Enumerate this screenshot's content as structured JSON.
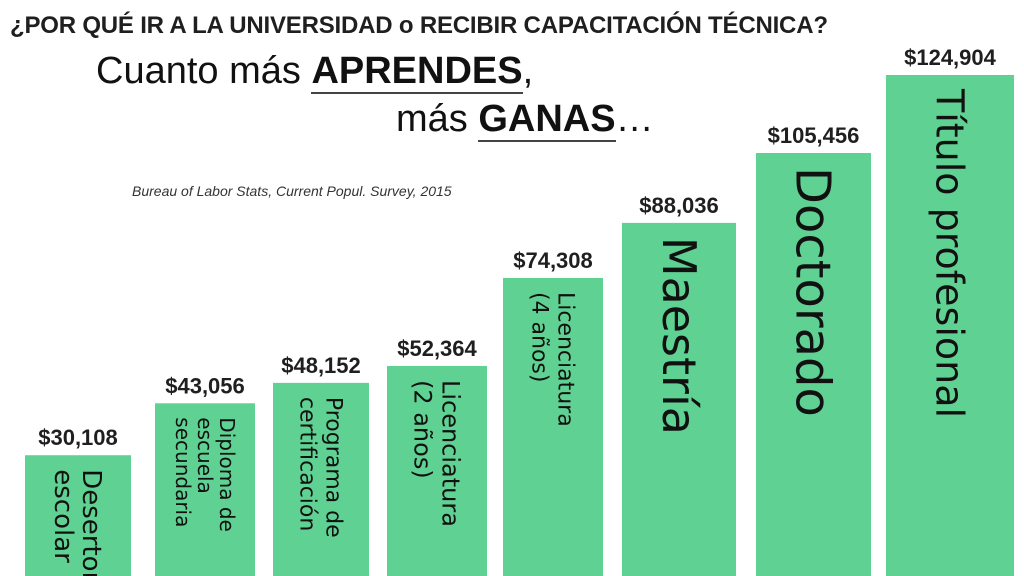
{
  "heading": "¿POR QUÉ IR A LA UNIVERSIDAD o RECIBIR CAPACITACIÓN TÉCNICA?",
  "subtitle": {
    "line1_prefix": "Cuanto más ",
    "line1_emph": "APRENDES",
    "line1_suffix": ",",
    "line2_prefix": "más ",
    "line2_emph": "GANAS",
    "line2_suffix": "…"
  },
  "source": "Bureau of Labor Stats, Current Popul. Survey, 2015",
  "colors": {
    "bar": "#5fd192",
    "text": "#1f1f1f"
  },
  "chart_data": {
    "type": "bar",
    "categories": [
      [
        "Desertor",
        "escolar"
      ],
      [
        "Diploma de",
        "escuela",
        "secundaria"
      ],
      [
        "Programa de",
        "certificación"
      ],
      [
        "Licenciatura",
        "(2 años)"
      ],
      [
        "Licenciatura",
        "(4 años)"
      ],
      [
        "Maestría"
      ],
      [
        "Doctorado"
      ],
      [
        "Título profesional"
      ]
    ],
    "values": [
      30108,
      43056,
      48152,
      52364,
      74308,
      88036,
      105456,
      124904
    ],
    "value_labels": [
      "$30,108",
      "$43,056",
      "$48,152",
      "$52,364",
      "$74,308",
      "$88,036",
      "$105,456",
      "$124,904"
    ],
    "ylim": [
      0,
      124904
    ],
    "grid": false,
    "legend": "none"
  }
}
